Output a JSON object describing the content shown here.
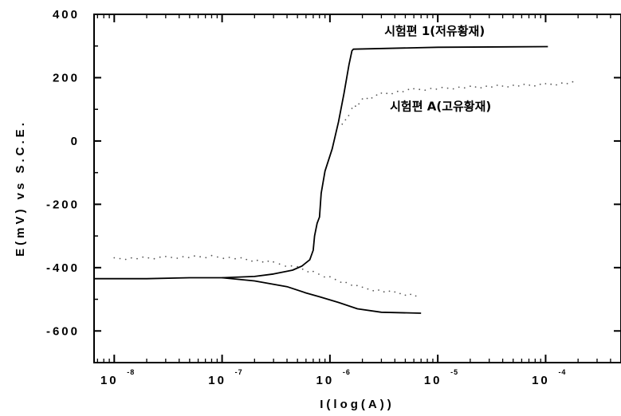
{
  "chart_data": {
    "type": "line",
    "xlabel": "I(log(A))",
    "ylabel": "E(mV) vs S.C.E.",
    "x_scale": "log",
    "xlim": [
      6.5e-09,
      0.0005
    ],
    "ylim": [
      -700,
      400
    ],
    "grid": false,
    "yticks": [
      {
        "value": 400,
        "label": "400"
      },
      {
        "value": 200,
        "label": "200"
      },
      {
        "value": 0,
        "label": "0"
      },
      {
        "value": -200,
        "label": "-200"
      },
      {
        "value": -400,
        "label": "-400"
      },
      {
        "value": -600,
        "label": "-600"
      }
    ],
    "xticks": [
      {
        "value": 1e-08,
        "base": "10",
        "exp": "-8"
      },
      {
        "value": 1e-07,
        "base": "10",
        "exp": "-7"
      },
      {
        "value": 1e-06,
        "base": "10",
        "exp": "-6"
      },
      {
        "value": 1e-05,
        "base": "10",
        "exp": "-5"
      },
      {
        "value": 0.0001,
        "base": "10",
        "exp": "-4"
      }
    ],
    "annotations": [
      {
        "text": "시험편 1(저유황재)",
        "x": 3.2e-06,
        "y": 335
      },
      {
        "text": "시험편 A(고유황재)",
        "x": 3.6e-06,
        "y": 97
      }
    ],
    "series": [
      {
        "id": "specimen-1",
        "style": "solid",
        "color": "#000000",
        "points": [
          [
            6.5e-09,
            -435
          ],
          [
            2e-08,
            -435
          ],
          [
            5e-08,
            -432
          ],
          [
            1e-07,
            -432
          ],
          [
            2e-07,
            -428
          ],
          [
            3e-07,
            -420
          ],
          [
            4.5e-07,
            -408
          ],
          [
            5.5e-07,
            -395
          ],
          [
            6.5e-07,
            -375
          ],
          [
            7e-07,
            -345
          ],
          [
            7.2e-07,
            -300
          ],
          [
            7.6e-07,
            -260
          ],
          [
            8e-07,
            -240
          ],
          [
            8.3e-07,
            -165
          ],
          [
            9e-07,
            -95
          ],
          [
            1.05e-06,
            -25
          ],
          [
            1.2e-06,
            60
          ],
          [
            1.35e-06,
            150
          ],
          [
            1.5e-06,
            240
          ],
          [
            1.6e-06,
            285
          ],
          [
            1.65e-06,
            290
          ],
          [
            1e-05,
            296
          ],
          [
            0.000105,
            298
          ]
        ]
      },
      {
        "id": "specimen-1-cathodic",
        "style": "solid",
        "color": "#000000",
        "points": [
          [
            1e-07,
            -432
          ],
          [
            2e-07,
            -442
          ],
          [
            4e-07,
            -460
          ],
          [
            6e-07,
            -480
          ],
          [
            8e-07,
            -492
          ],
          [
            1.2e-06,
            -510
          ],
          [
            1.8e-06,
            -530
          ],
          [
            3e-06,
            -541
          ],
          [
            7e-06,
            -544
          ]
        ]
      },
      {
        "id": "specimen-a",
        "style": "dotted",
        "color": "#555555",
        "points": [
          [
            1e-08,
            -372
          ],
          [
            3e-08,
            -368
          ],
          [
            8e-08,
            -365
          ],
          [
            1.5e-07,
            -372
          ],
          [
            3e-07,
            -385
          ],
          [
            5e-07,
            -400
          ],
          [
            7e-07,
            -415
          ],
          [
            1e-06,
            -432
          ],
          [
            2e-06,
            -465
          ],
          [
            4e-06,
            -480
          ],
          [
            7e-06,
            -490
          ]
        ]
      },
      {
        "id": "specimen-a-anodic",
        "style": "dotted",
        "color": "#555555",
        "points": [
          [
            1.3e-06,
            50
          ],
          [
            1.6e-06,
            100
          ],
          [
            2e-06,
            130
          ],
          [
            3e-06,
            148
          ],
          [
            6e-06,
            162
          ],
          [
            2e-05,
            170
          ],
          [
            0.0001,
            178
          ],
          [
            0.0002,
            185
          ]
        ]
      }
    ]
  }
}
